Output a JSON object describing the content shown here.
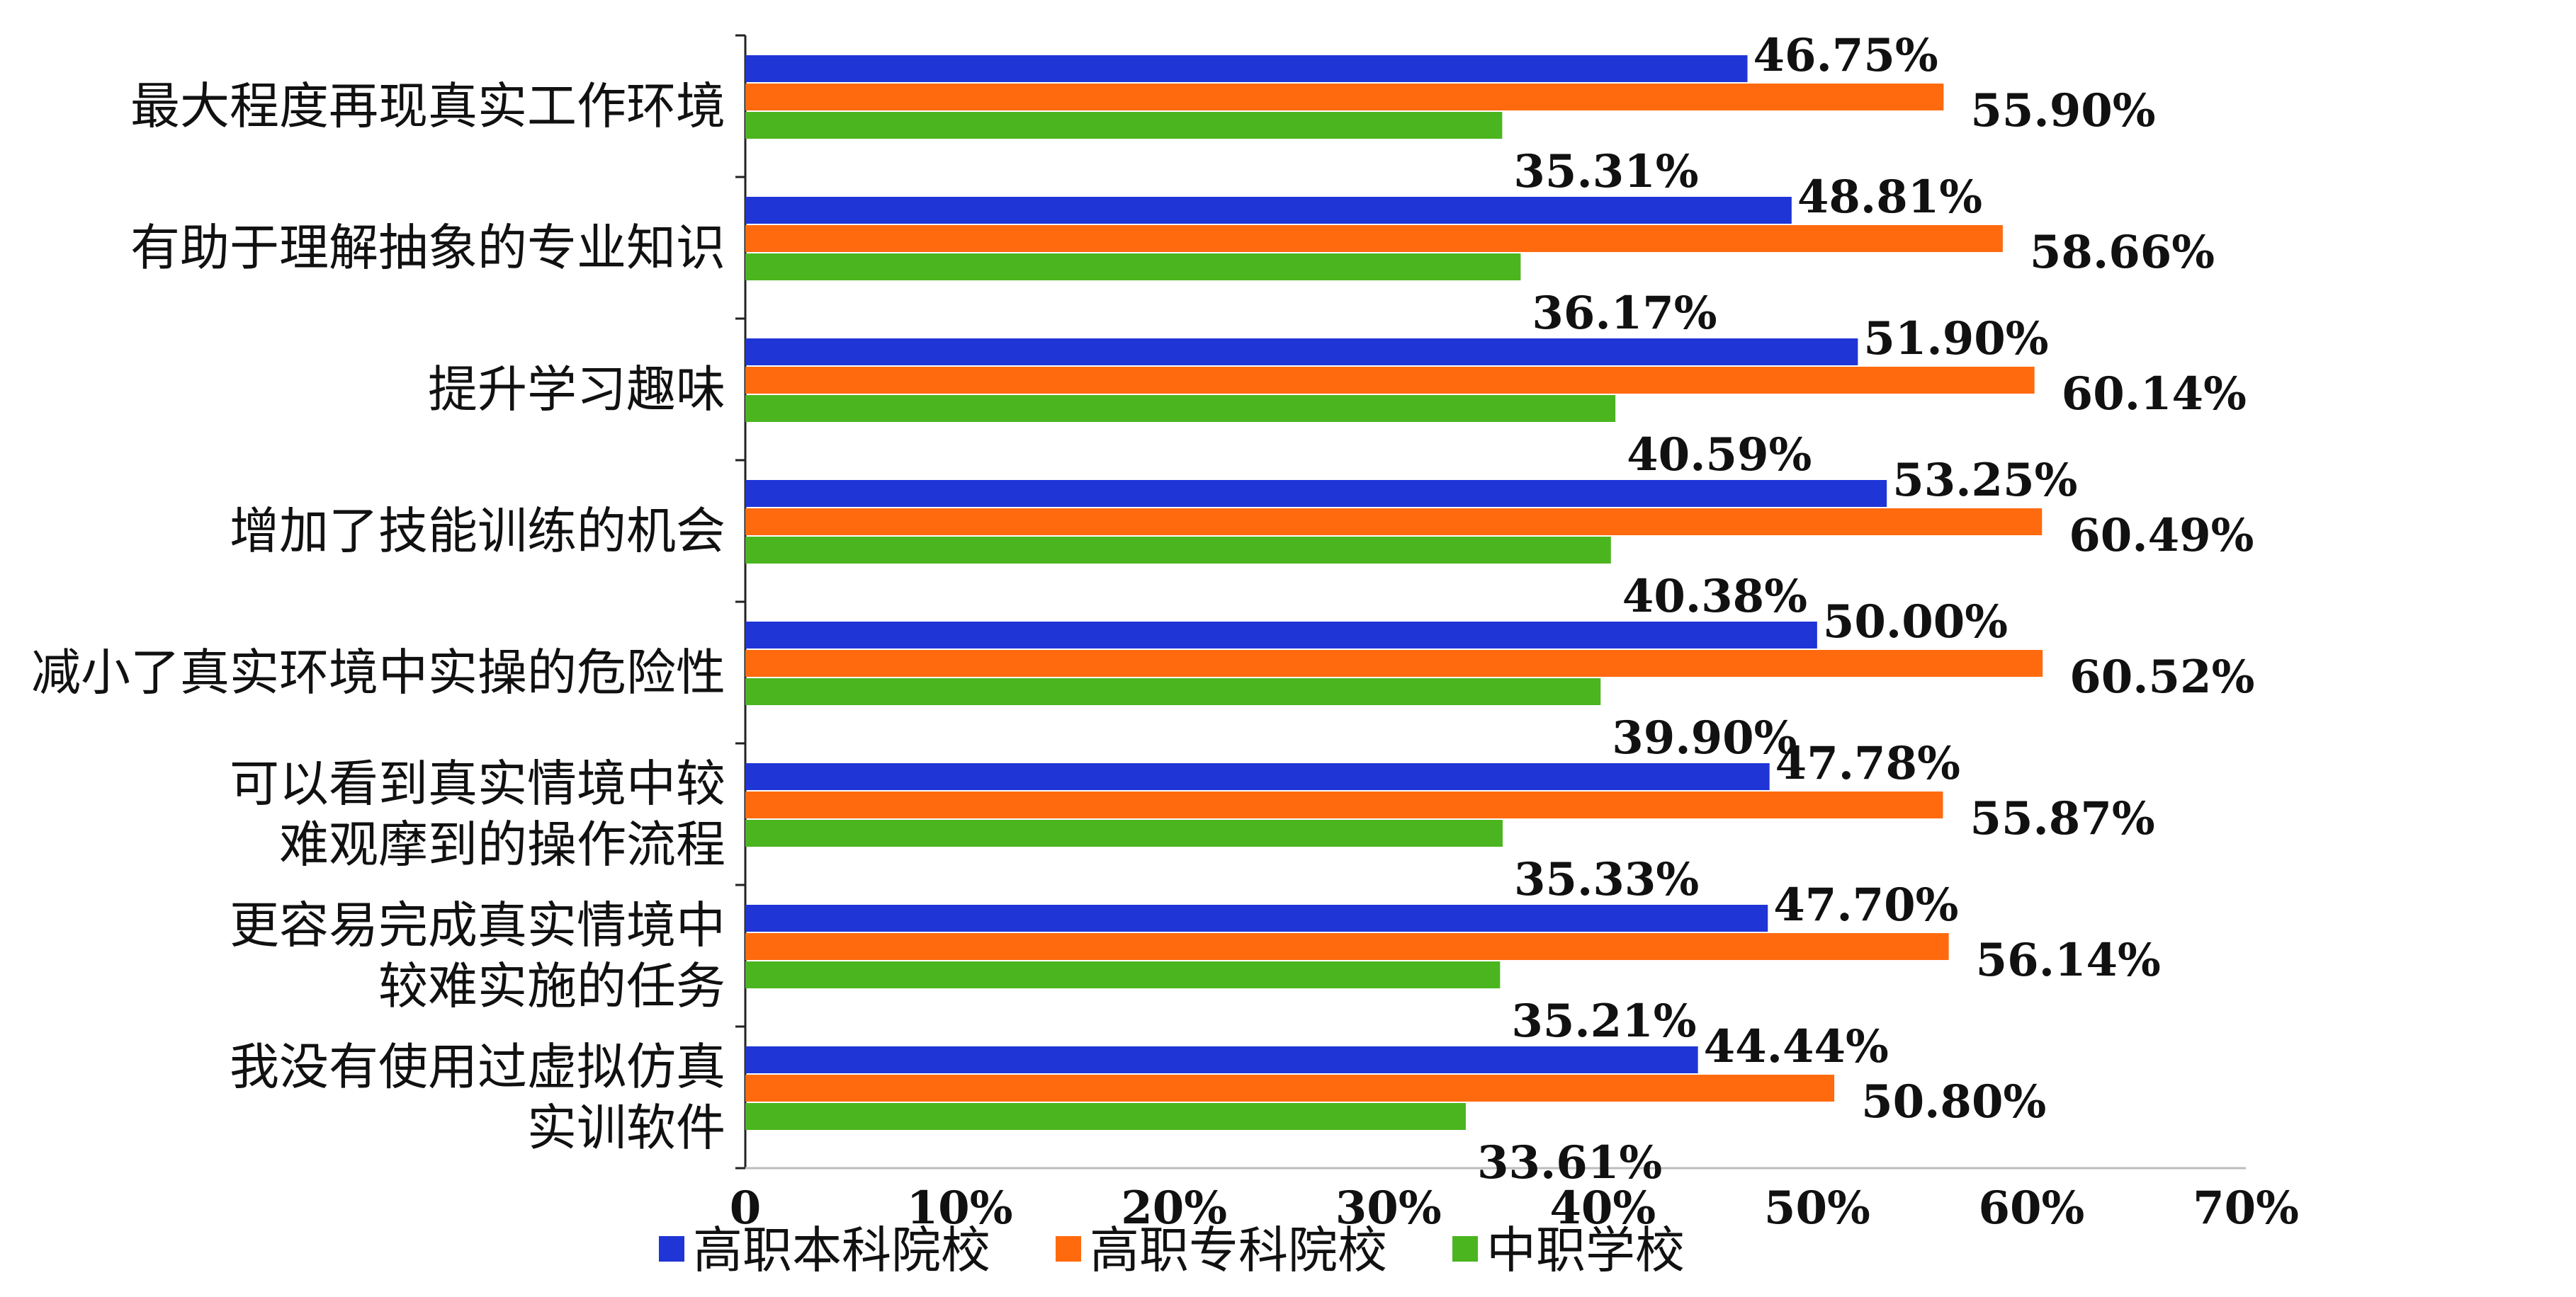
{
  "chart_data": {
    "type": "bar",
    "orientation": "horizontal",
    "categories": [
      [
        "最大程度再现真实工作环境"
      ],
      [
        "有助于理解抽象的专业知识"
      ],
      [
        "提升学习趣味"
      ],
      [
        "增加了技能训练的机会"
      ],
      [
        "减小了真实环境中实操的危险性"
      ],
      [
        "可以看到真实情境中较",
        "难观摩到的操作流程"
      ],
      [
        "更容易完成真实情境中",
        "较难实施的任务"
      ],
      [
        "我没有使用过虚拟仿真",
        "实训软件"
      ]
    ],
    "series": [
      {
        "name": "高职本科院校",
        "color": "#1f35d6",
        "values": [
          46.75,
          48.81,
          51.9,
          53.25,
          50.0,
          47.78,
          47.7,
          44.44
        ],
        "labels": [
          "46.75%",
          "48.81%",
          "51.90%",
          "53.25%",
          "50.00%",
          "47.78%",
          "47.70%",
          "44.44%"
        ]
      },
      {
        "name": "高职专科院校",
        "color": "#ff6a0e",
        "values": [
          55.9,
          58.66,
          60.14,
          60.49,
          60.52,
          55.87,
          56.14,
          50.8
        ],
        "labels": [
          "55.90%",
          "58.66%",
          "60.14%",
          "60.49%",
          "60.52%",
          "55.87%",
          "56.14%",
          "50.80%"
        ]
      },
      {
        "name": "中职学校",
        "color": "#4bb51f",
        "values": [
          35.31,
          36.17,
          40.59,
          40.38,
          39.9,
          35.33,
          35.21,
          33.61
        ],
        "labels": [
          "35.31%",
          "36.17%",
          "40.59%",
          "40.38%",
          "39.90%",
          "35.33%",
          "35.21%",
          "33.61%"
        ]
      }
    ],
    "xlim": [
      0,
      70
    ],
    "xticks": [
      "0",
      "10%",
      "20%",
      "30%",
      "40%",
      "50%",
      "60%",
      "70%"
    ],
    "legend": "bottom",
    "grid": false
  }
}
